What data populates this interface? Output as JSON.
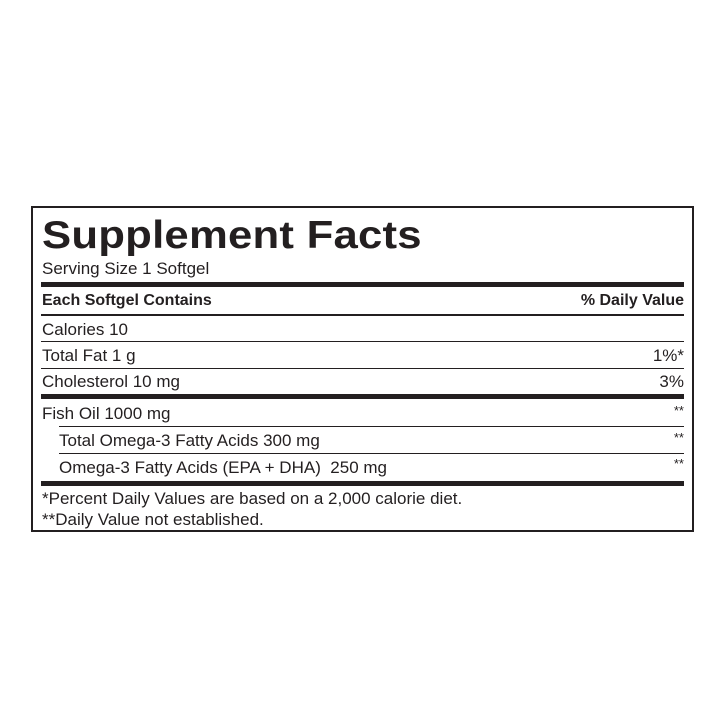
{
  "title": "Supplement Facts",
  "serving_size": "Serving Size 1 Softgel",
  "header": {
    "left": "Each Softgel Contains",
    "right": "% Daily Value"
  },
  "rows": [
    {
      "label": "Calories 10",
      "dv": ""
    },
    {
      "label": "Total Fat 1 g",
      "dv": "1%*"
    },
    {
      "label": "Cholesterol 10 mg",
      "dv": "3%"
    },
    {
      "label": "Fish Oil 1000 mg",
      "dv": "**"
    },
    {
      "label": "Total Omega-3 Fatty Acids 300 mg",
      "dv": "**"
    },
    {
      "label": "Omega-3 Fatty Acids (EPA + DHA)  250 mg",
      "dv": "**"
    }
  ],
  "footnotes": [
    "*Percent Daily Values are based on a 2,000 calorie diet.",
    "**Daily Value not established."
  ]
}
